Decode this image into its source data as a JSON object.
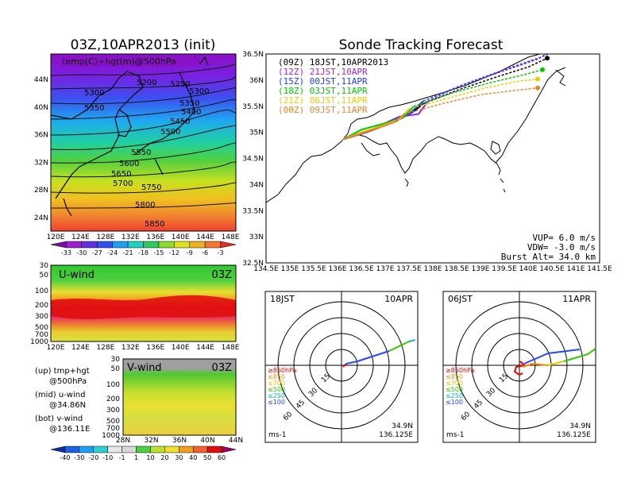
{
  "left": {
    "title": "03Z,10APR2013 (init)",
    "map_label": "temp(C)+hgt(m)@500hPa",
    "lat_ticks": [
      "44N",
      "40N",
      "36N",
      "32N",
      "28N",
      "24N"
    ],
    "lon_ticks": [
      "120E",
      "124E",
      "128E",
      "132E",
      "136E",
      "140E",
      "144E",
      "148E"
    ],
    "contour_labels": [
      "5200",
      "5250",
      "5300",
      "5300",
      "5350",
      "5350",
      "5400",
      "5450",
      "5500",
      "5550",
      "5600",
      "5650",
      "5700",
      "5750",
      "5800",
      "5850"
    ],
    "temp_colorbar": [
      "-33",
      "-30",
      "-27",
      "-24",
      "-21",
      "-18",
      "-15",
      "-12",
      "-9",
      "-6",
      "-3"
    ],
    "u_label": "U-wind",
    "u_time": "03Z",
    "pressure_ticks": [
      "30",
      "50",
      "100",
      "200",
      "300",
      "500",
      "700",
      "1000"
    ],
    "v_label": "V-wind",
    "v_time": "03Z",
    "v_lat_ticks": [
      "28N",
      "32N",
      "36N",
      "40N",
      "44N"
    ],
    "wind_colorbar": [
      "-40",
      "-30",
      "-20",
      "-10",
      "-1",
      "1",
      "10",
      "20",
      "30",
      "40",
      "50",
      "60"
    ],
    "legend": [
      {
        "key": "(up) tmp+hgt",
        "sub": "@500hPa"
      },
      {
        "key": "(mid) u-wind",
        "sub": "@34.86N"
      },
      {
        "key": "(bot) v-wind",
        "sub": "@136.11E"
      }
    ]
  },
  "right": {
    "title": "Sonde Tracking Forecast",
    "lat_ticks": [
      "36.5N",
      "36N",
      "35.5N",
      "35N",
      "34.5N",
      "34N",
      "33.5N",
      "33N",
      "32.5N"
    ],
    "lon_ticks": [
      "134.5E",
      "135E",
      "135.5E",
      "136E",
      "136.5E",
      "137E",
      "137.5E",
      "138E",
      "138.5E",
      "139E",
      "139.5E",
      "140E",
      "140.5E",
      "141E",
      "141.5E"
    ],
    "runs": [
      {
        "label": "(09Z)  18JST,10APR2013",
        "color": "#000000"
      },
      {
        "label": "(12Z)  21JST,10APR",
        "color": "#a020f0"
      },
      {
        "label": "(15Z)  00JST,11APR",
        "color": "#1e3cff"
      },
      {
        "label": "(18Z)  03JST,11APR",
        "color": "#00c800"
      },
      {
        "label": "(21Z)  06JST,11APR",
        "color": "#f0c800"
      },
      {
        "label": "(00Z)  09JST,11APR",
        "color": "#f08228"
      }
    ],
    "params": [
      "VUP=  6.0 m/s",
      "VDW= -3.0 m/s",
      "Burst Alt= 34.0 km"
    ],
    "polar": [
      {
        "left": "18JST",
        "right": "10APR",
        "loc1": "34.9N",
        "loc2": "136.125E",
        "unit": "ms-1"
      },
      {
        "left": "06JST",
        "right": "11APR",
        "loc1": "34.9N",
        "loc2": "136.125E",
        "unit": "ms-1"
      }
    ],
    "ring_labels": [
      "15",
      "30",
      "45",
      "60"
    ],
    "pressure_legend": [
      {
        "label": "≥850hPa",
        "color": "#e60000"
      },
      {
        "label": "≤850",
        "color": "#ff8c00"
      },
      {
        "label": "≤700",
        "color": "#e6c800"
      },
      {
        "label": "≤500",
        "color": "#32c800"
      },
      {
        "label": "≤250",
        "color": "#00b4dc"
      },
      {
        "label": "≤100",
        "color": "#2846ff"
      }
    ]
  },
  "chart_data": [
    {
      "type": "heatmap",
      "title": "03Z,10APR2013 (init)",
      "series": [
        {
          "name": "temp(C)+hgt(m)@500hPa"
        }
      ],
      "colorbar": [
        -33,
        -30,
        -27,
        -24,
        -21,
        -18,
        -15,
        -12,
        -9,
        -6,
        -3
      ],
      "xlim": [
        120,
        149
      ],
      "ylim": [
        22,
        47
      ]
    },
    {
      "type": "heatmap",
      "series": [
        {
          "name": "U-wind"
        }
      ],
      "xlim": [
        120,
        149
      ],
      "ylim": [
        1000,
        30
      ]
    },
    {
      "type": "heatmap",
      "series": [
        {
          "name": "V-wind"
        }
      ],
      "xlim": [
        28,
        44
      ],
      "ylim": [
        1000,
        30
      ],
      "colorbar": [
        -40,
        -30,
        -20,
        -10,
        -1,
        1,
        10,
        20,
        30,
        40,
        50,
        60
      ]
    },
    {
      "type": "line",
      "title": "Sonde Tracking Forecast",
      "xlim": [
        134.5,
        141.5
      ],
      "ylim": [
        32.5,
        36.5
      ],
      "series": [
        {
          "name": "(09Z)  18JST,10APR2013",
          "color": "#000000",
          "x": [
            136.1,
            136.6,
            137.2,
            137.6,
            137.8,
            138.5,
            139.3,
            140.0,
            140.4
          ],
          "y": [
            34.86,
            35.0,
            35.2,
            35.4,
            35.55,
            35.8,
            36.05,
            36.25,
            36.42
          ]
        },
        {
          "name": "(12Z)  21JST,10APR",
          "color": "#a020f0",
          "x": [
            136.1,
            136.7,
            137.3,
            137.7,
            137.9,
            138.6,
            139.4,
            140.2,
            140.55
          ],
          "y": [
            34.86,
            35.05,
            35.3,
            35.35,
            35.6,
            35.9,
            36.15,
            36.4,
            36.6
          ]
        },
        {
          "name": "(15Z)  00JST,11APR",
          "color": "#1e3cff",
          "x": [
            136.1,
            136.6,
            137.2,
            137.5,
            137.8,
            138.6,
            139.5,
            140.3,
            140.6
          ],
          "y": [
            34.86,
            35.0,
            35.25,
            35.35,
            35.6,
            35.9,
            36.2,
            36.45,
            36.58
          ]
        },
        {
          "name": "(18Z)  03JST,11APR",
          "color": "#00c800",
          "x": [
            136.1,
            136.5,
            137.1,
            137.4,
            137.6,
            138.4,
            139.2,
            139.9,
            140.3
          ],
          "y": [
            34.86,
            35.05,
            35.2,
            35.3,
            35.5,
            35.75,
            35.95,
            36.1,
            36.2
          ]
        },
        {
          "name": "(21Z)  06JST,11APR",
          "color": "#f0c800",
          "x": [
            136.1,
            136.5,
            137.0,
            137.3,
            137.5,
            138.3,
            139.1,
            139.8,
            140.2
          ],
          "y": [
            34.86,
            35.0,
            35.15,
            35.25,
            35.45,
            35.65,
            35.85,
            35.98,
            36.02
          ]
        },
        {
          "name": "(00Z)  09JST,11APR",
          "color": "#f08228",
          "x": [
            136.1,
            136.4,
            136.9,
            137.2,
            137.4,
            138.2,
            139.0,
            139.7,
            140.2
          ],
          "y": [
            34.86,
            34.95,
            35.1,
            35.2,
            35.35,
            35.55,
            35.72,
            35.8,
            35.85
          ]
        }
      ]
    }
  ]
}
